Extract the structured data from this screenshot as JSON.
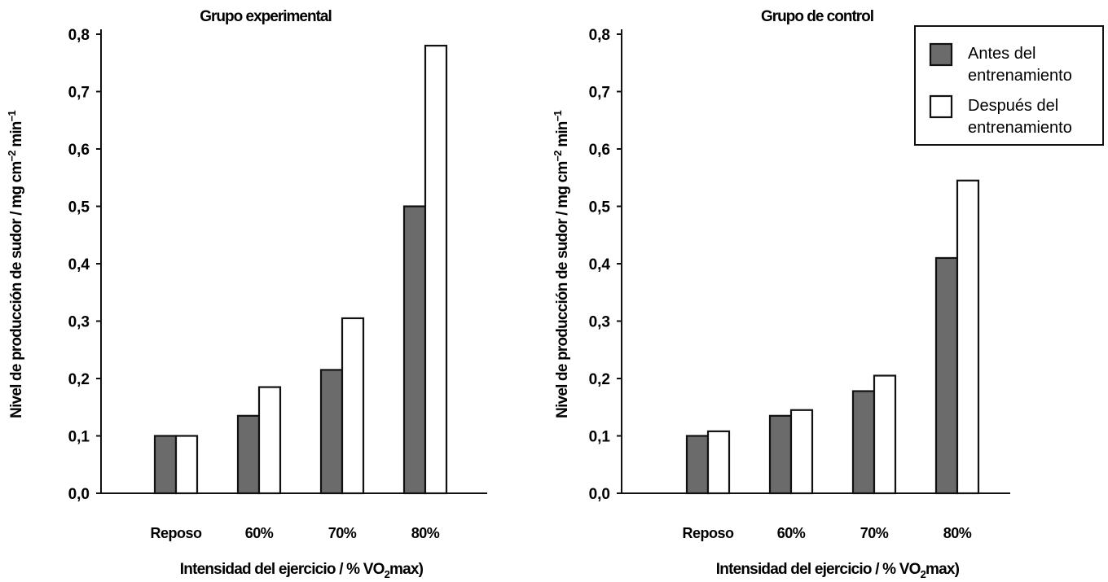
{
  "chart_data": [
    {
      "type": "bar",
      "title": "Grupo experimental",
      "xlabel_pre": "Intensidad del ejercicio / % VO",
      "xlabel_sub": "2",
      "xlabel_post": "max)",
      "ylabel_pre": "Nivel de producción de sudor / mg cm",
      "ylabel_sup1": "−2",
      "ylabel_mid": " min",
      "ylabel_sup2": "−1",
      "categories": [
        "Reposo",
        "60%",
        "70%",
        "80%"
      ],
      "series": [
        {
          "name": "Antes del entrenamiento",
          "values": [
            0.1,
            0.135,
            0.215,
            0.5
          ]
        },
        {
          "name": "Después del entrenamiento",
          "values": [
            0.1,
            0.185,
            0.305,
            0.78
          ]
        }
      ],
      "ylim": [
        0,
        0.8
      ],
      "yticks": [
        "0,0",
        "0,1",
        "0,2",
        "0,3",
        "0,4",
        "0,5",
        "0,6",
        "0,7",
        "0,8"
      ],
      "grid": false
    },
    {
      "type": "bar",
      "title": "Grupo de control",
      "xlabel_pre": "Intensidad del ejercicio / % VO",
      "xlabel_sub": "2",
      "xlabel_post": "max)",
      "ylabel_pre": "Nivel de producción de sudor / mg cm",
      "ylabel_sup1": "−2",
      "ylabel_mid": " min",
      "ylabel_sup2": "−1",
      "categories": [
        "Reposo",
        "60%",
        "70%",
        "80%"
      ],
      "series": [
        {
          "name": "Antes del entrenamiento",
          "values": [
            0.1,
            0.135,
            0.178,
            0.41
          ]
        },
        {
          "name": "Después del entrenamiento",
          "values": [
            0.108,
            0.145,
            0.205,
            0.545
          ]
        }
      ],
      "ylim": [
        0,
        0.8
      ],
      "yticks": [
        "0,0",
        "0,1",
        "0,2",
        "0,3",
        "0,4",
        "0,5",
        "0,6",
        "0,7",
        "0,8"
      ],
      "grid": false,
      "legend": {
        "placement": "top-right",
        "entries": [
          {
            "line1": "Antes del",
            "line2": "entrenamiento",
            "color": "#6b6b6b"
          },
          {
            "line1": "Después del",
            "line2": "entrenamiento",
            "color": "#ffffff"
          }
        ]
      }
    }
  ],
  "colors": {
    "antes": "#6b6b6b",
    "despues": "#ffffff",
    "stroke": "#111111"
  }
}
